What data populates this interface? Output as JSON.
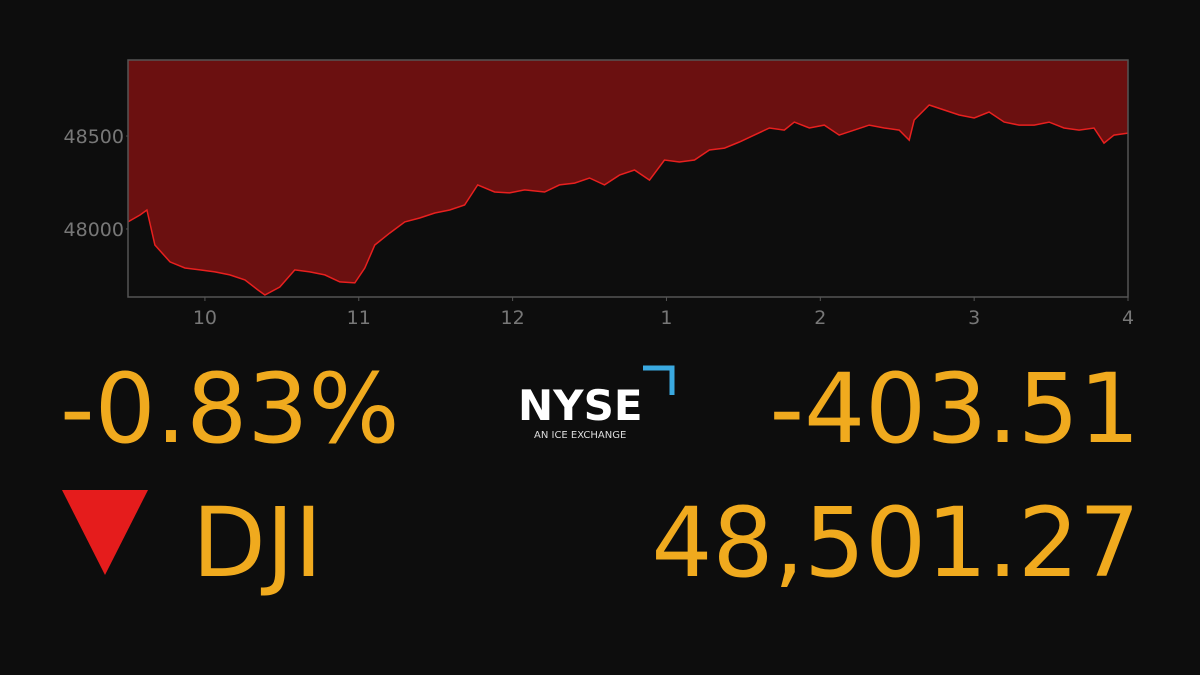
{
  "chart_data": {
    "type": "area",
    "x": [
      9.5,
      9.578,
      9.623,
      9.675,
      9.773,
      9.87,
      9.968,
      10.065,
      10.162,
      10.26,
      10.344,
      10.39,
      10.487,
      10.584,
      10.682,
      10.779,
      10.877,
      10.974,
      11.039,
      11.104,
      11.201,
      11.299,
      11.396,
      11.494,
      11.591,
      11.688,
      11.773,
      11.883,
      11.981,
      12.078,
      12.208,
      12.305,
      12.403,
      12.5,
      12.597,
      12.695,
      12.792,
      12.89,
      12.987,
      13.084,
      13.182,
      13.279,
      13.377,
      13.474,
      13.571,
      13.669,
      13.766,
      13.831,
      13.929,
      14.026,
      14.123,
      14.221,
      14.318,
      14.416,
      14.513,
      14.578,
      14.61,
      14.708,
      14.805,
      14.903,
      15,
      15.097,
      15.195,
      15.292,
      15.39,
      15.487,
      15.584,
      15.682,
      15.779,
      15.844,
      15.909,
      16
    ],
    "values": [
      48038,
      48075,
      48102,
      47914,
      47823,
      47790,
      47780,
      47769,
      47753,
      47726,
      47672,
      47645,
      47688,
      47780,
      47769,
      47753,
      47715,
      47710,
      47790,
      47914,
      47978,
      48038,
      48059,
      48086,
      48102,
      48129,
      48237,
      48199,
      48194,
      48210,
      48199,
      48237,
      48247,
      48274,
      48237,
      48290,
      48317,
      48263,
      48371,
      48360,
      48371,
      48425,
      48435,
      48468,
      48505,
      48543,
      48532,
      48575,
      48543,
      48559,
      48505,
      48532,
      48559,
      48543,
      48532,
      48478,
      48586,
      48667,
      48640,
      48613,
      48597,
      48629,
      48575,
      48559,
      48559,
      48575,
      48543,
      48532,
      48543,
      48462,
      48505,
      48516
    ],
    "color": "#e8201f",
    "fill": "#6b1010",
    "xlim": [
      9.5,
      16
    ],
    "xticks": [
      10,
      11,
      {
        "value": 12,
        "label": "12"
      },
      {
        "value": 13,
        "label": "1"
      },
      {
        "value": 14,
        "label": "2"
      },
      {
        "value": 15,
        "label": "3"
      },
      {
        "value": 16,
        "label": "4"
      }
    ],
    "ylim": [
      47634,
      48909
    ],
    "yticks": [
      48000,
      48500
    ]
  },
  "ticker": {
    "percent": "-0.83%",
    "logo": "NYSE",
    "logo_sub": "AN ICE EXCHANGE",
    "change": "-403.51",
    "symbol": "DJI",
    "price": "48,501.27"
  }
}
